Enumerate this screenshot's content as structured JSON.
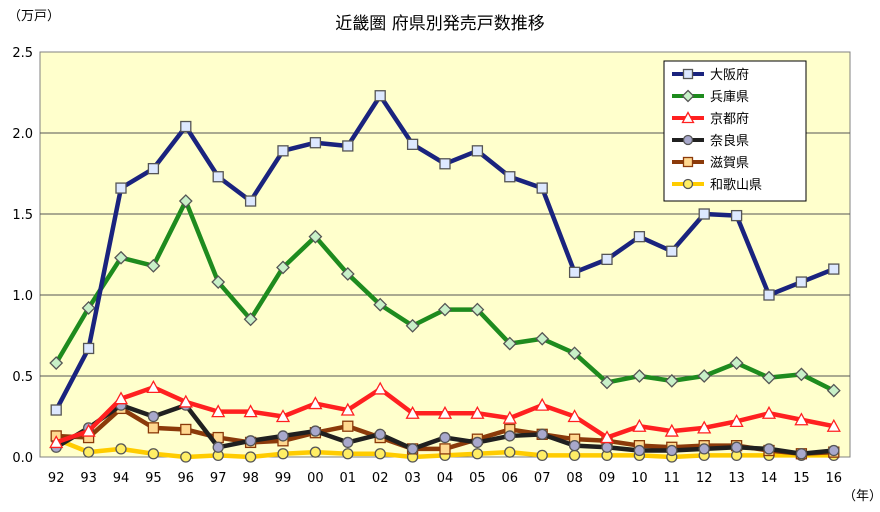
{
  "chart_data": {
    "type": "line",
    "title": "近畿圏 府県別発売戸数推移",
    "ylabel": "（万戸）",
    "xlabel": "（年）",
    "ylim": [
      0,
      2.5
    ],
    "yticks": [
      "0.0",
      "0.5",
      "1.0",
      "1.5",
      "2.0",
      "2.5"
    ],
    "categories": [
      "92",
      "93",
      "94",
      "95",
      "96",
      "97",
      "98",
      "99",
      "00",
      "01",
      "02",
      "03",
      "04",
      "05",
      "06",
      "07",
      "08",
      "09",
      "10",
      "11",
      "12",
      "13",
      "14",
      "15",
      "16"
    ],
    "grid": true,
    "legend_position": "top-right",
    "plot_background": "#ffffcc",
    "series": [
      {
        "name": "大阪府",
        "color": "#1a237e",
        "fill": "#dde8ff",
        "marker": "square",
        "values": [
          0.29,
          0.67,
          1.66,
          1.78,
          2.04,
          1.73,
          1.58,
          1.89,
          1.94,
          1.92,
          2.23,
          1.93,
          1.81,
          1.89,
          1.73,
          1.66,
          1.14,
          1.22,
          1.36,
          1.27,
          1.5,
          1.49,
          1.0,
          1.08,
          1.16
        ]
      },
      {
        "name": "兵庫県",
        "color": "#1e8b1e",
        "fill": "#c8f0c8",
        "marker": "diamond",
        "values": [
          0.58,
          0.92,
          1.23,
          1.18,
          1.58,
          1.08,
          0.85,
          1.17,
          1.36,
          1.13,
          0.94,
          0.81,
          0.91,
          0.91,
          0.7,
          0.73,
          0.64,
          0.46,
          0.5,
          0.47,
          0.5,
          0.58,
          0.49,
          0.51,
          0.41
        ]
      },
      {
        "name": "京都府",
        "color": "#ff2020",
        "fill": "#ffffff",
        "marker": "triangle",
        "values": [
          0.09,
          0.16,
          0.36,
          0.43,
          0.34,
          0.28,
          0.28,
          0.25,
          0.33,
          0.29,
          0.42,
          0.27,
          0.27,
          0.27,
          0.24,
          0.32,
          0.25,
          0.12,
          0.19,
          0.16,
          0.18,
          0.22,
          0.27,
          0.23,
          0.19
        ]
      },
      {
        "name": "奈良県",
        "color": "#202020",
        "fill": "#a8a8cc",
        "marker": "circle",
        "values": [
          0.06,
          0.18,
          0.32,
          0.25,
          0.32,
          0.06,
          0.1,
          0.13,
          0.16,
          0.09,
          0.14,
          0.05,
          0.12,
          0.09,
          0.13,
          0.14,
          0.07,
          0.06,
          0.04,
          0.04,
          0.05,
          0.06,
          0.05,
          0.02,
          0.04
        ]
      },
      {
        "name": "滋賀県",
        "color": "#8b3a0a",
        "fill": "#ffd890",
        "marker": "square",
        "values": [
          0.13,
          0.12,
          0.3,
          0.18,
          0.17,
          0.12,
          0.09,
          0.1,
          0.15,
          0.19,
          0.12,
          0.05,
          0.05,
          0.11,
          0.17,
          0.14,
          0.11,
          0.1,
          0.07,
          0.06,
          0.07,
          0.07,
          0.04,
          0.02,
          0.03
        ]
      },
      {
        "name": "和歌山県",
        "color": "#ffcc00",
        "fill": "#ffee66",
        "marker": "circle",
        "values": [
          0.11,
          0.03,
          0.05,
          0.02,
          0.0,
          0.01,
          0.0,
          0.02,
          0.03,
          0.02,
          0.02,
          0.0,
          0.01,
          0.02,
          0.03,
          0.01,
          0.01,
          0.01,
          0.01,
          0.0,
          0.01,
          0.01,
          0.01,
          0.01,
          0.01
        ]
      }
    ]
  }
}
